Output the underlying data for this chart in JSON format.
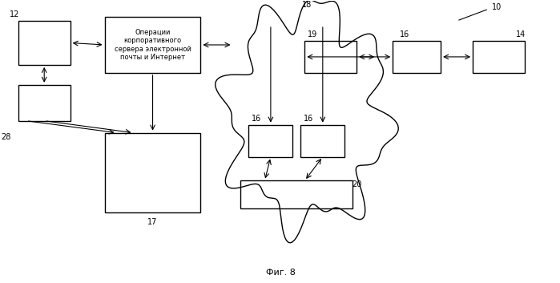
{
  "title": "Фиг. 8",
  "background": "#ffffff",
  "box_color": "#000000",
  "box_fill": "#ffffff",
  "label_12": "12",
  "label_17": "17",
  "label_18": "18",
  "label_19": "19",
  "label_20": "20",
  "label_28": "28",
  "label_10": "10",
  "label_16a": "16",
  "label_16b": "16",
  "label_16c": "16",
  "label_14": "14",
  "server_text": "Операции\nкорпоративного\nсервера электронной\nпочты и Интернет"
}
